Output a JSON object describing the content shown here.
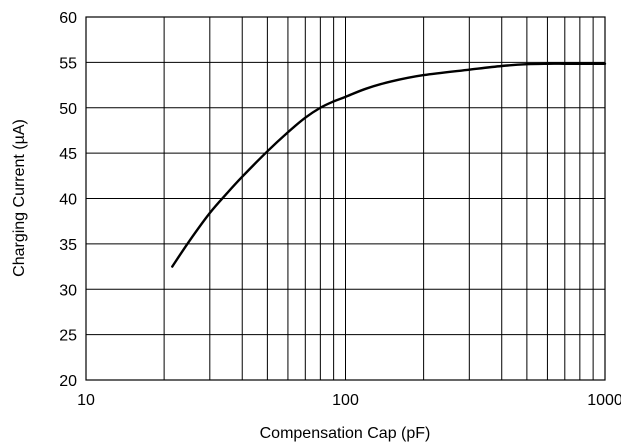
{
  "chart_data": {
    "type": "line",
    "xlabel": "Compensation Cap (pF)",
    "ylabel": "Charging Current (µA)",
    "x_scale": "log",
    "xlim": [
      10,
      1000
    ],
    "ylim": [
      20,
      60
    ],
    "x_ticks": [
      10,
      100,
      1000
    ],
    "x_tick_labels": [
      "10",
      "100",
      "1000"
    ],
    "y_ticks": [
      20,
      25,
      30,
      35,
      40,
      45,
      50,
      55,
      60
    ],
    "y_tick_labels": [
      "20",
      "25",
      "30",
      "35",
      "40",
      "45",
      "50",
      "55",
      "60"
    ],
    "grid": true,
    "series": [
      {
        "color": "#000000",
        "x": [
          21.5,
          25,
          30,
          35,
          40,
          50,
          60,
          70,
          80,
          90,
          100,
          120,
          150,
          200,
          300,
          400,
          500,
          600,
          700,
          800,
          1000
        ],
        "y": [
          32.5,
          35.3,
          38.4,
          40.6,
          42.4,
          45.2,
          47.3,
          48.9,
          50.0,
          50.7,
          51.2,
          52.1,
          52.9,
          53.6,
          54.2,
          54.6,
          54.8,
          54.85,
          54.85,
          54.85,
          54.85
        ]
      }
    ]
  }
}
